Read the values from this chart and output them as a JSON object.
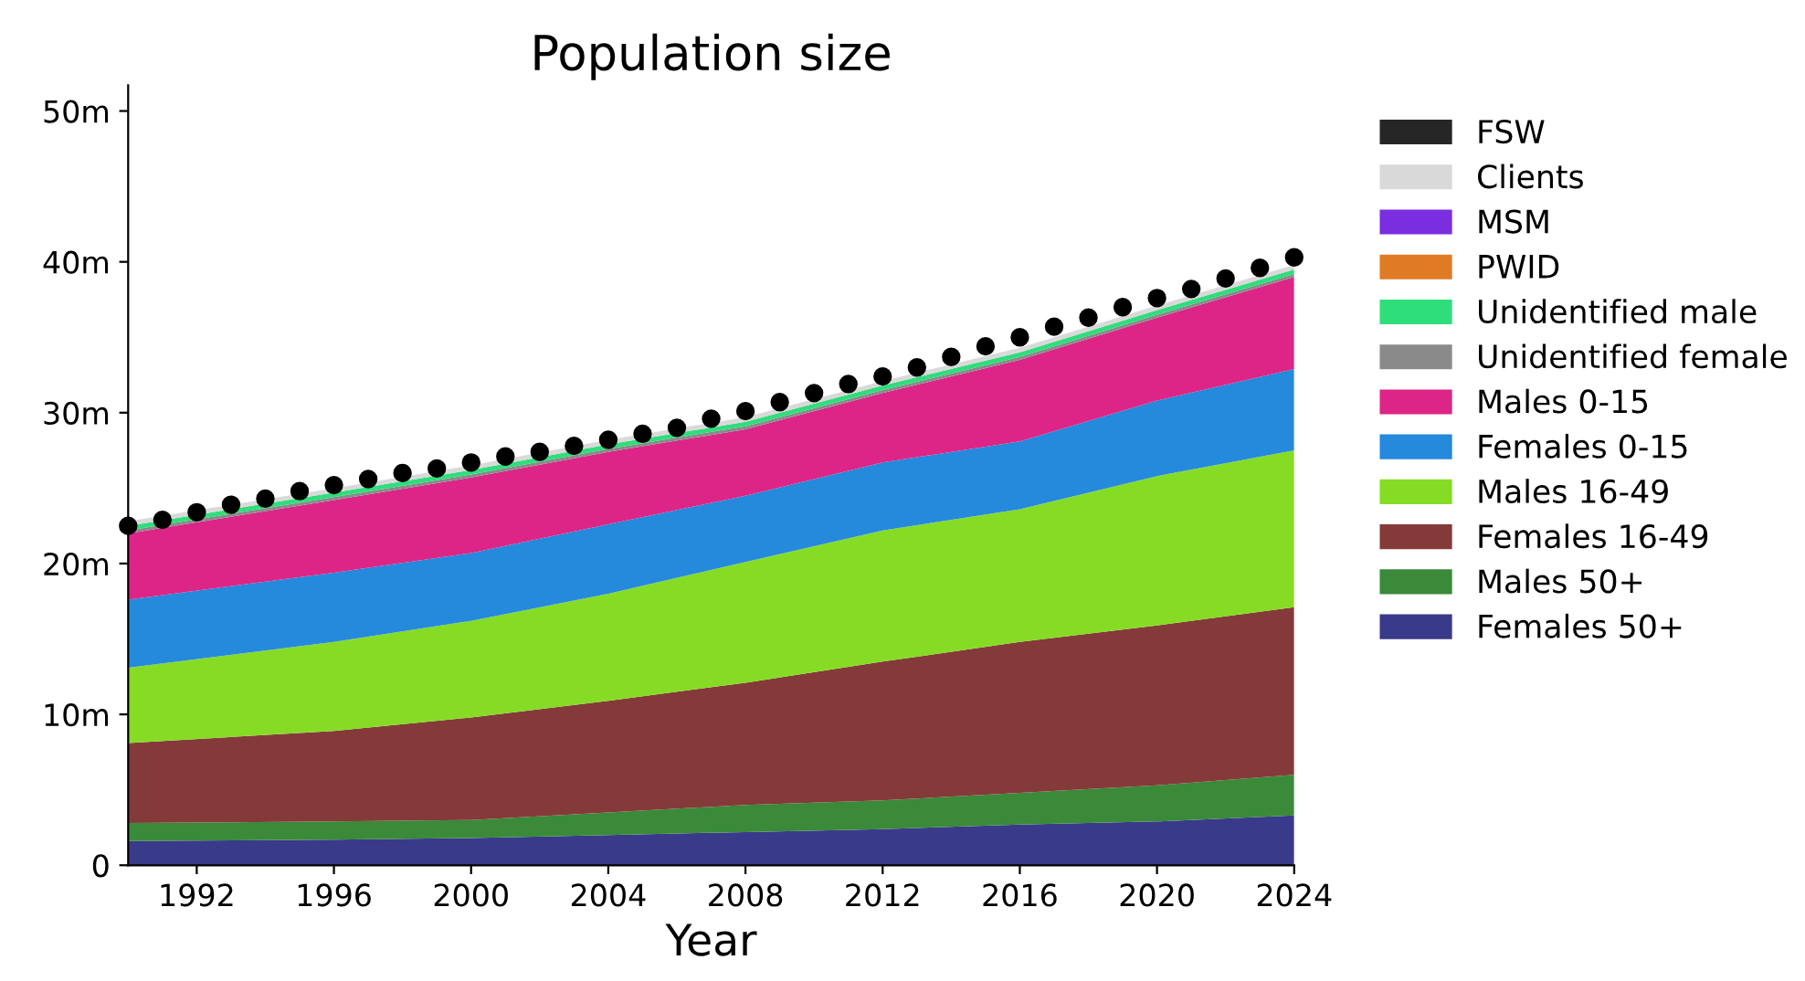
{
  "chart_data": {
    "type": "area",
    "stacked": true,
    "title": "Population size",
    "xlabel": "Year",
    "x": [
      1990,
      1996,
      2000,
      2004,
      2008,
      2012,
      2016,
      2020,
      2024
    ],
    "xlim": [
      1990,
      2024
    ],
    "xticks": [
      1992,
      1996,
      2000,
      2004,
      2008,
      2012,
      2016,
      2020,
      2024
    ],
    "ylim": [
      0,
      51.7
    ],
    "yticks": [
      {
        "value": 0,
        "label": "0"
      },
      {
        "value": 10,
        "label": "10m"
      },
      {
        "value": 20,
        "label": "20m"
      },
      {
        "value": 30,
        "label": "30m"
      },
      {
        "value": 40,
        "label": "40m"
      },
      {
        "value": 50,
        "label": "50m"
      }
    ],
    "grid": false,
    "legend": "right",
    "series": [
      {
        "name": "Females 50+",
        "color": "#3a3a8a",
        "values": [
          1.6,
          1.7,
          1.8,
          2.0,
          2.2,
          2.4,
          2.7,
          2.9,
          3.3
        ]
      },
      {
        "name": "Males 50+",
        "color": "#3a8a3a",
        "values": [
          1.2,
          1.2,
          1.2,
          1.5,
          1.8,
          1.9,
          2.1,
          2.4,
          2.7
        ]
      },
      {
        "name": "Females 16-49",
        "color": "#853a3a",
        "values": [
          5.3,
          6.0,
          6.8,
          7.4,
          8.1,
          9.2,
          10.0,
          10.6,
          11.1
        ]
      },
      {
        "name": "Males 16-49",
        "color": "#86dc25",
        "values": [
          5.0,
          5.9,
          6.4,
          7.1,
          8.0,
          8.7,
          8.8,
          9.9,
          10.4
        ]
      },
      {
        "name": "Females 0-15",
        "color": "#2589dc",
        "values": [
          4.5,
          4.6,
          4.5,
          4.6,
          4.4,
          4.5,
          4.5,
          5.0,
          5.4
        ]
      },
      {
        "name": "Males 0-15",
        "color": "#dc2586",
        "values": [
          4.4,
          4.8,
          5.0,
          4.8,
          4.4,
          4.6,
          5.4,
          5.5,
          6.1
        ]
      },
      {
        "name": "Unidentified female",
        "color": "#8a8a8a",
        "values": [
          0.2,
          0.2,
          0.2,
          0.2,
          0.2,
          0.2,
          0.2,
          0.2,
          0.2
        ]
      },
      {
        "name": "Unidentified male",
        "color": "#2ede7b",
        "values": [
          0.3,
          0.3,
          0.3,
          0.3,
          0.3,
          0.3,
          0.3,
          0.3,
          0.3
        ]
      },
      {
        "name": "PWID",
        "color": "#e07b25",
        "values": [
          null,
          null,
          null,
          null,
          null,
          null,
          null,
          null,
          null
        ]
      },
      {
        "name": "MSM",
        "color": "#7b2ee0",
        "values": [
          null,
          null,
          null,
          null,
          null,
          null,
          null,
          null,
          null
        ]
      },
      {
        "name": "Clients",
        "color": "#d9d9d9",
        "values": [
          0.3,
          0.3,
          0.3,
          0.3,
          0.3,
          0.3,
          0.3,
          0.3,
          0.3
        ]
      },
      {
        "name": "FSW",
        "color": "#262626",
        "values": [
          null,
          null,
          null,
          null,
          null,
          null,
          null,
          null,
          null
        ]
      },
      {
        "type": "scatter",
        "color": "#000000",
        "marker": "circle",
        "x": [
          1990,
          1991,
          1992,
          1993,
          1994,
          1995,
          1996,
          1997,
          1998,
          1999,
          2000,
          2001,
          2002,
          2003,
          2004,
          2005,
          2006,
          2007,
          2008,
          2009,
          2010,
          2011,
          2012,
          2013,
          2014,
          2015,
          2016,
          2017,
          2018,
          2019,
          2020,
          2021,
          2022,
          2023,
          2024
        ],
        "values": [
          22.5,
          22.9,
          23.4,
          23.9,
          24.3,
          24.8,
          25.2,
          25.6,
          26.0,
          26.3,
          26.7,
          27.1,
          27.4,
          27.8,
          28.2,
          28.6,
          29.0,
          29.6,
          30.1,
          30.7,
          31.3,
          31.9,
          32.4,
          33.0,
          33.7,
          34.4,
          35.0,
          35.7,
          36.3,
          37.0,
          37.6,
          38.2,
          38.9,
          39.6,
          40.3
        ]
      }
    ]
  }
}
